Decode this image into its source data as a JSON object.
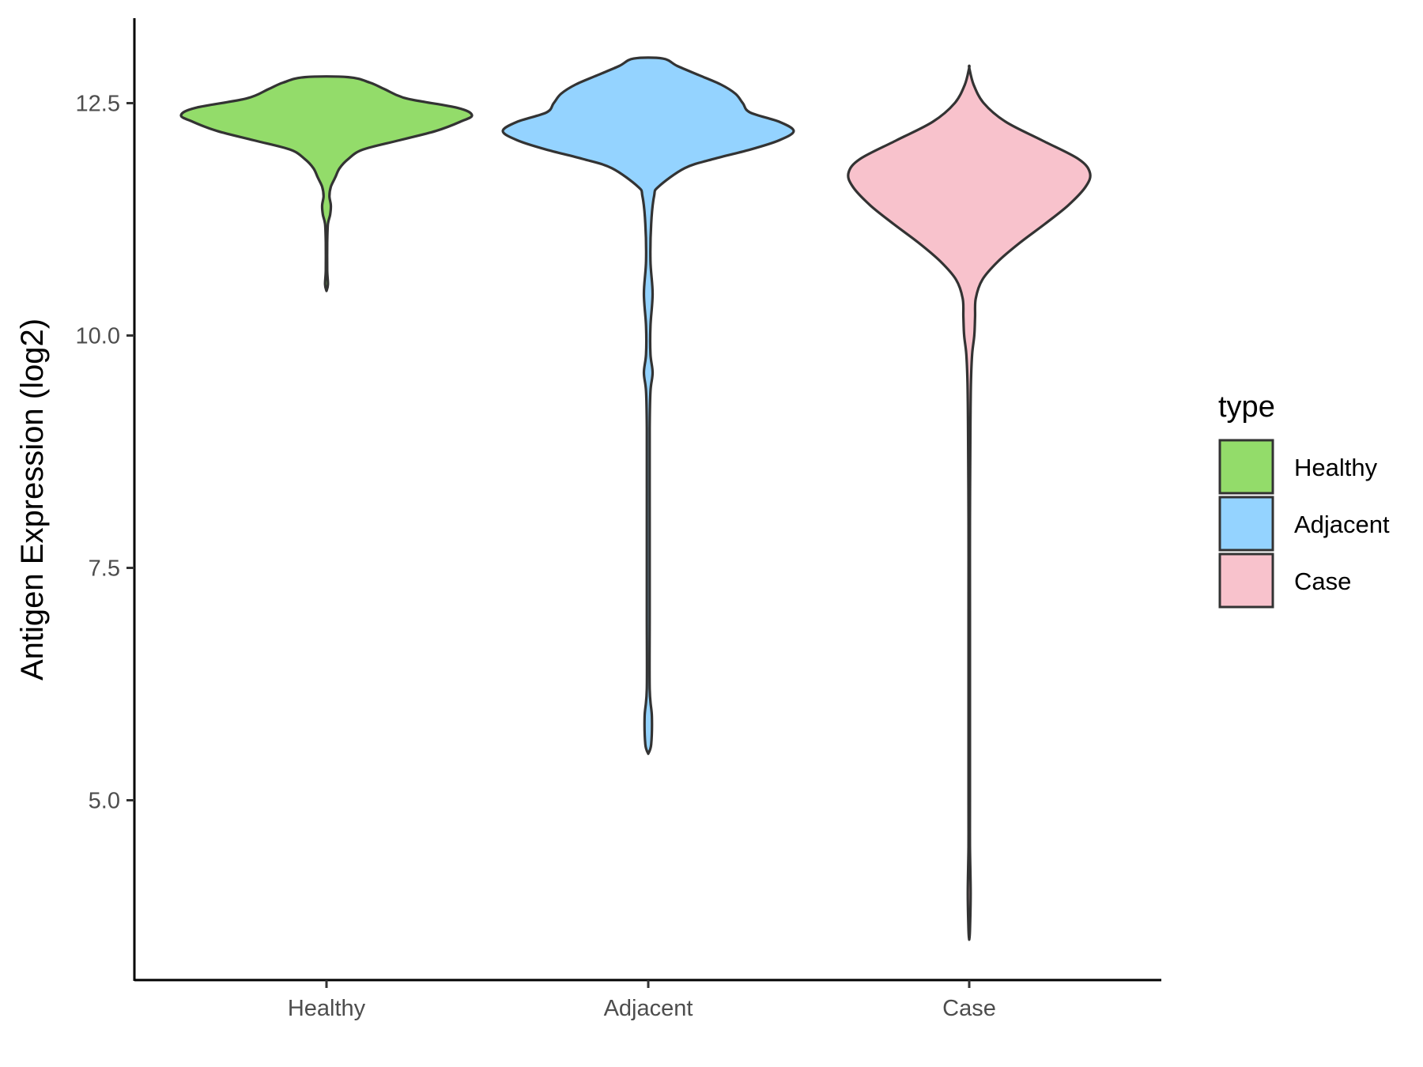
{
  "chart_data": {
    "type": "violin",
    "title": "",
    "xlabel": "",
    "ylabel": "Antigen Expression (log2)",
    "ylim": [
      3.1,
      13.5
    ],
    "yticks": [
      "5.0",
      "7.5",
      "10.0",
      "12.5"
    ],
    "ytick_values": [
      5.0,
      7.5,
      10.0,
      12.5
    ],
    "categories": [
      "Healthy",
      "Adjacent",
      "Case"
    ],
    "grid": false,
    "legend": {
      "title": "type",
      "placement": "right",
      "entries": [
        "Healthy",
        "Adjacent",
        "Case"
      ]
    },
    "colors": {
      "Healthy": "#93dc6a",
      "Adjacent": "#94d3ff",
      "Case": "#f8c2cc",
      "outline": "#333333"
    },
    "series": [
      {
        "category": "Healthy",
        "min": 10.48,
        "max": 12.78,
        "density": [
          [
            10.48,
            0.0
          ],
          [
            10.55,
            0.01
          ],
          [
            10.7,
            0.005
          ],
          [
            11.0,
            0.005
          ],
          [
            11.2,
            0.01
          ],
          [
            11.3,
            0.025
          ],
          [
            11.4,
            0.03
          ],
          [
            11.5,
            0.02
          ],
          [
            11.6,
            0.03
          ],
          [
            11.7,
            0.06
          ],
          [
            11.8,
            0.09
          ],
          [
            11.9,
            0.15
          ],
          [
            12.0,
            0.25
          ],
          [
            12.1,
            0.5
          ],
          [
            12.2,
            0.75
          ],
          [
            12.3,
            0.92
          ],
          [
            12.37,
            1.0
          ],
          [
            12.45,
            0.9
          ],
          [
            12.55,
            0.55
          ],
          [
            12.65,
            0.4
          ],
          [
            12.72,
            0.3
          ],
          [
            12.78,
            0.15
          ]
        ]
      },
      {
        "category": "Adjacent",
        "min": 5.5,
        "max": 12.98,
        "density": [
          [
            5.5,
            0.0
          ],
          [
            5.6,
            0.02
          ],
          [
            5.9,
            0.025
          ],
          [
            6.2,
            0.01
          ],
          [
            7.0,
            0.01
          ],
          [
            8.0,
            0.01
          ],
          [
            9.0,
            0.01
          ],
          [
            9.4,
            0.015
          ],
          [
            9.6,
            0.03
          ],
          [
            9.8,
            0.015
          ],
          [
            10.1,
            0.015
          ],
          [
            10.45,
            0.03
          ],
          [
            10.8,
            0.015
          ],
          [
            11.2,
            0.02
          ],
          [
            11.5,
            0.04
          ],
          [
            11.6,
            0.07
          ],
          [
            11.8,
            0.25
          ],
          [
            11.9,
            0.45
          ],
          [
            12.0,
            0.7
          ],
          [
            12.1,
            0.9
          ],
          [
            12.2,
            1.0
          ],
          [
            12.3,
            0.9
          ],
          [
            12.4,
            0.7
          ],
          [
            12.5,
            0.65
          ],
          [
            12.6,
            0.6
          ],
          [
            12.7,
            0.5
          ],
          [
            12.8,
            0.35
          ],
          [
            12.9,
            0.2
          ],
          [
            12.98,
            0.1
          ]
        ]
      },
      {
        "category": "Case",
        "min": 3.5,
        "max": 12.88,
        "density": [
          [
            3.5,
            0.0
          ],
          [
            3.6,
            0.005
          ],
          [
            4.0,
            0.01
          ],
          [
            4.5,
            0.005
          ],
          [
            5.0,
            0.005
          ],
          [
            6.0,
            0.005
          ],
          [
            7.0,
            0.005
          ],
          [
            8.0,
            0.005
          ],
          [
            9.0,
            0.008
          ],
          [
            9.5,
            0.012
          ],
          [
            9.8,
            0.02
          ],
          [
            10.0,
            0.035
          ],
          [
            10.2,
            0.04
          ],
          [
            10.4,
            0.045
          ],
          [
            10.6,
            0.09
          ],
          [
            10.8,
            0.2
          ],
          [
            11.0,
            0.35
          ],
          [
            11.2,
            0.52
          ],
          [
            11.4,
            0.68
          ],
          [
            11.6,
            0.8
          ],
          [
            11.75,
            0.83
          ],
          [
            11.9,
            0.75
          ],
          [
            12.1,
            0.5
          ],
          [
            12.3,
            0.25
          ],
          [
            12.5,
            0.1
          ],
          [
            12.7,
            0.03
          ],
          [
            12.88,
            0.0
          ]
        ]
      }
    ]
  }
}
